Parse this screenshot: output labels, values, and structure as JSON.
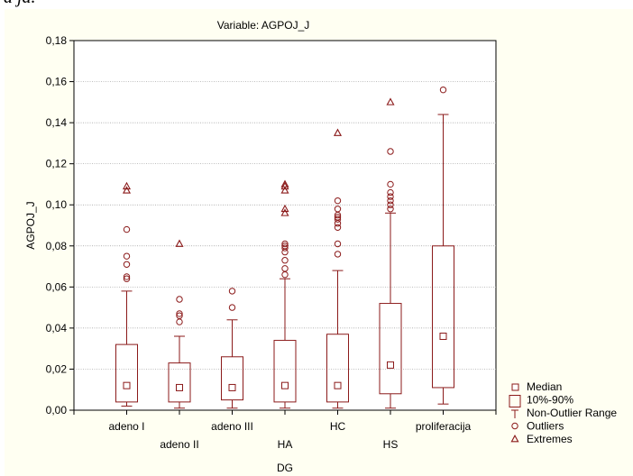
{
  "header_fragment": "a ja.",
  "chart_data": {
    "type": "box",
    "title": "Variable: AGPOJ_J",
    "xlabel": "DG",
    "ylabel": "AGPOJ_J",
    "ylim": [
      0,
      0.18
    ],
    "yticks": [
      0,
      0.02,
      0.04,
      0.06,
      0.08,
      0.1,
      0.12,
      0.14,
      0.16,
      0.18
    ],
    "ytick_labels": [
      "0,00",
      "0,02",
      "0,04",
      "0,06",
      "0,08",
      "0,10",
      "0,12",
      "0,14",
      "0,16",
      "0,18"
    ],
    "grid": true,
    "legend_position": "bottom-right",
    "color": "#8b1a1a",
    "categories": [
      "adeno I",
      "adeno II",
      "adeno III",
      "HA",
      "HC",
      "HS",
      "proliferacija"
    ],
    "label_rows": [
      0,
      1,
      0,
      1,
      0,
      1,
      0
    ],
    "boxes": [
      {
        "median": 0.012,
        "q10": 0.004,
        "q90": 0.032,
        "whisker_low": 0.002,
        "whisker_high": 0.058,
        "outliers": [
          0.064,
          0.065,
          0.071,
          0.075,
          0.088
        ],
        "extremes": [
          0.107,
          0.109
        ]
      },
      {
        "median": 0.011,
        "q10": 0.004,
        "q90": 0.023,
        "whisker_low": 0.001,
        "whisker_high": 0.036,
        "outliers": [
          0.043,
          0.046,
          0.047,
          0.054
        ],
        "extremes": [
          0.081
        ]
      },
      {
        "median": 0.011,
        "q10": 0.005,
        "q90": 0.026,
        "whisker_low": 0.001,
        "whisker_high": 0.044,
        "outliers": [
          0.05,
          0.058
        ],
        "extremes": []
      },
      {
        "median": 0.012,
        "q10": 0.004,
        "q90": 0.034,
        "whisker_low": 0.001,
        "whisker_high": 0.064,
        "outliers": [
          0.066,
          0.069,
          0.073,
          0.077,
          0.079,
          0.08,
          0.081
        ],
        "extremes": [
          0.096,
          0.098,
          0.107,
          0.109,
          0.11
        ]
      },
      {
        "median": 0.012,
        "q10": 0.004,
        "q90": 0.037,
        "whisker_low": 0.001,
        "whisker_high": 0.068,
        "outliers": [
          0.076,
          0.081,
          0.089,
          0.091,
          0.093,
          0.094,
          0.095,
          0.098,
          0.102
        ],
        "extremes": [
          0.135
        ]
      },
      {
        "median": 0.022,
        "q10": 0.008,
        "q90": 0.052,
        "whisker_low": 0.001,
        "whisker_high": 0.096,
        "outliers": [
          0.098,
          0.1,
          0.102,
          0.104,
          0.106,
          0.11,
          0.126
        ],
        "extremes": [
          0.15
        ]
      },
      {
        "median": 0.036,
        "q10": 0.011,
        "q90": 0.08,
        "whisker_low": 0.003,
        "whisker_high": 0.144,
        "outliers": [
          0.156
        ],
        "extremes": []
      }
    ],
    "legend": [
      "Median",
      "10%-90%",
      "Non-Outlier Range",
      "Outliers",
      "Extremes"
    ]
  }
}
